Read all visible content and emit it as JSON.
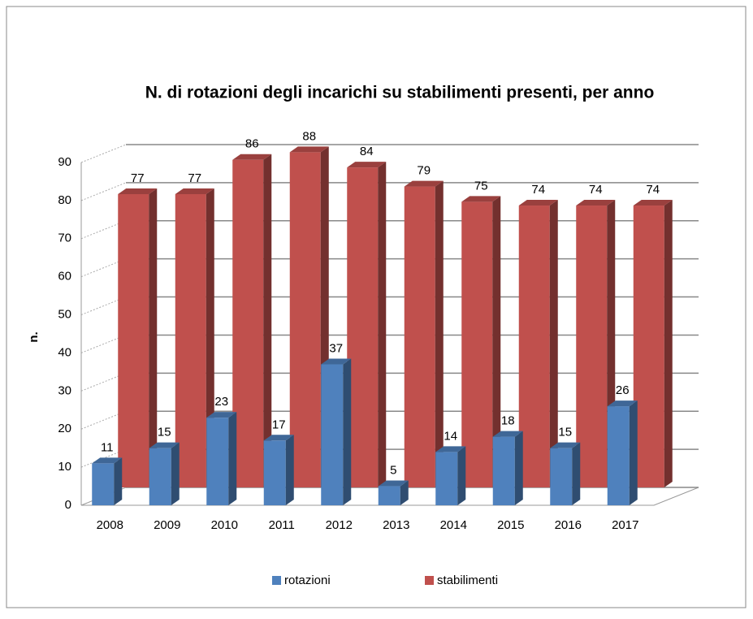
{
  "chart_data": {
    "type": "bar3d",
    "title": "N. di rotazioni degli incarichi su stabilimenti presenti, per anno",
    "y_label": "n.",
    "categories": [
      "2008",
      "2009",
      "2010",
      "2011",
      "2012",
      "2013",
      "2014",
      "2015",
      "2016",
      "2017"
    ],
    "series": [
      {
        "name": "rotazioni",
        "color": "#4f81bd",
        "values": [
          11,
          15,
          23,
          17,
          37,
          5,
          14,
          18,
          15,
          26
        ]
      },
      {
        "name": "stabilimenti",
        "color": "#c0504d",
        "values": [
          77,
          77,
          86,
          88,
          84,
          79,
          75,
          74,
          74,
          74
        ]
      }
    ],
    "ylim": [
      0,
      90
    ],
    "yticks": [
      0,
      10,
      20,
      30,
      40,
      50,
      60,
      70,
      80,
      90
    ],
    "grid": true,
    "legend": "bottom"
  }
}
